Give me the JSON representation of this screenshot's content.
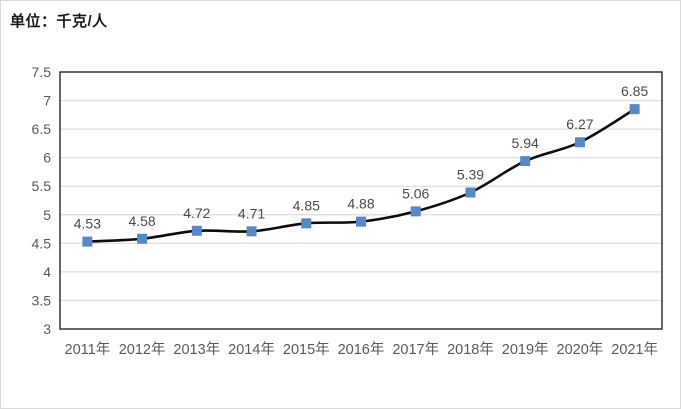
{
  "unit_label": "单位：千克/人",
  "chart_data": {
    "type": "line",
    "title": "",
    "categories": [
      "2011年",
      "2012年",
      "2013年",
      "2014年",
      "2015年",
      "2016年",
      "2017年",
      "2018年",
      "2019年",
      "2020年",
      "2021年"
    ],
    "values": [
      4.53,
      4.58,
      4.72,
      4.71,
      4.85,
      4.88,
      5.06,
      5.39,
      5.94,
      6.27,
      6.85
    ],
    "data_labels": [
      "4.53",
      "4.58",
      "4.72",
      "4.71",
      "4.85",
      "4.88",
      "5.06",
      "5.39",
      "5.94",
      "6.27",
      "6.85"
    ],
    "ylim": [
      3,
      7.5
    ],
    "ytick_step": 0.5,
    "yticks": [
      "3",
      "3.5",
      "4",
      "4.5",
      "5",
      "5.5",
      "6",
      "6.5",
      "7",
      "7.5"
    ],
    "grid": true,
    "legend": "none",
    "smooth_line": true,
    "marker_shape": "square"
  },
  "colors": {
    "line": "#0d0d0d",
    "marker": "#5589c8",
    "marker_border": "#40799f",
    "gridline": "#dcdcdc",
    "plot_border": "#262626",
    "tick_text": "#595959",
    "data_label_text": "#4a4a4a",
    "outer_border": "#d9d9d9",
    "title_text": "#1a1a1a"
  }
}
